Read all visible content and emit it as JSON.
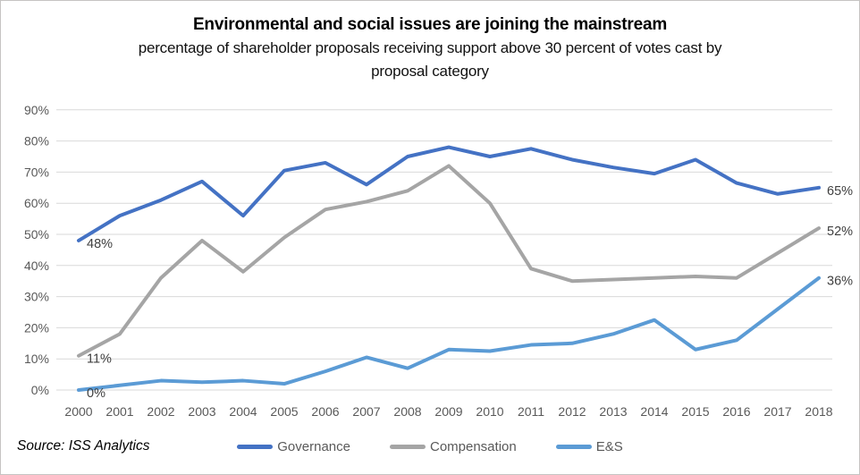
{
  "header": {
    "title": "Environmental and social issues are joining the mainstream",
    "subtitle_line1": "percentage of shareholder proposals receiving support above 30 percent of votes cast by",
    "subtitle_line2": "proposal category"
  },
  "source": "Source: ISS Analytics",
  "colors": {
    "governance": "#4472C4",
    "compensation": "#A5A5A5",
    "es": "#5B9BD5",
    "gridline": "#D9D9D9",
    "axis_text": "#595959",
    "label_text": "#404040"
  },
  "legend": [
    {
      "label": "Governance",
      "color": "#4472C4"
    },
    {
      "label": "Compensation",
      "color": "#A5A5A5"
    },
    {
      "label": "E&S",
      "color": "#5B9BD5"
    }
  ],
  "chart_data": {
    "type": "line",
    "title": "Environmental and social issues are joining the mainstream",
    "subtitle": "percentage of shareholder proposals receiving support above 30 percent of votes cast by proposal category",
    "x": [
      2000,
      2001,
      2002,
      2003,
      2004,
      2005,
      2006,
      2007,
      2008,
      2009,
      2010,
      2011,
      2012,
      2013,
      2014,
      2015,
      2016,
      2017,
      2018
    ],
    "series": [
      {
        "name": "Governance",
        "color": "#4472C4",
        "values": [
          48,
          56,
          61,
          67,
          56,
          70.5,
          73,
          66,
          75,
          78,
          75,
          77.5,
          74,
          71.5,
          69.5,
          74,
          66.5,
          63,
          65
        ]
      },
      {
        "name": "Compensation",
        "color": "#A5A5A5",
        "values": [
          11,
          18,
          36,
          48,
          38,
          49,
          58,
          60.5,
          64,
          72,
          60,
          39,
          35,
          35.5,
          36,
          36.5,
          36,
          44,
          52
        ]
      },
      {
        "name": "E&S",
        "color": "#5B9BD5",
        "values": [
          0,
          1.5,
          3,
          2.5,
          3,
          2,
          6,
          10.5,
          7,
          13,
          12.5,
          14.5,
          15,
          18,
          22.5,
          13,
          16,
          26,
          36
        ]
      }
    ],
    "ylim": [
      0,
      90
    ],
    "ytick_step": 10,
    "ytick_labels": [
      "0%",
      "10%",
      "20%",
      "30%",
      "40%",
      "50%",
      "60%",
      "70%",
      "80%",
      "90%"
    ],
    "xtick_labels": [
      "2000",
      "2001",
      "2002",
      "2003",
      "2004",
      "2005",
      "2006",
      "2007",
      "2008",
      "2009",
      "2010",
      "2011",
      "2012",
      "2013",
      "2014",
      "2015",
      "2016",
      "2017",
      "2018"
    ],
    "grid": true,
    "legend_position": "bottom",
    "annotations": [
      {
        "series": "Governance",
        "year": 2000,
        "text": "48%"
      },
      {
        "series": "Compensation",
        "year": 2000,
        "text": "11%"
      },
      {
        "series": "E&S",
        "year": 2000,
        "text": "0%"
      },
      {
        "series": "Governance",
        "year": 2018,
        "text": "65%"
      },
      {
        "series": "Compensation",
        "year": 2018,
        "text": "52%"
      },
      {
        "series": "E&S",
        "year": 2018,
        "text": "36%"
      }
    ]
  }
}
